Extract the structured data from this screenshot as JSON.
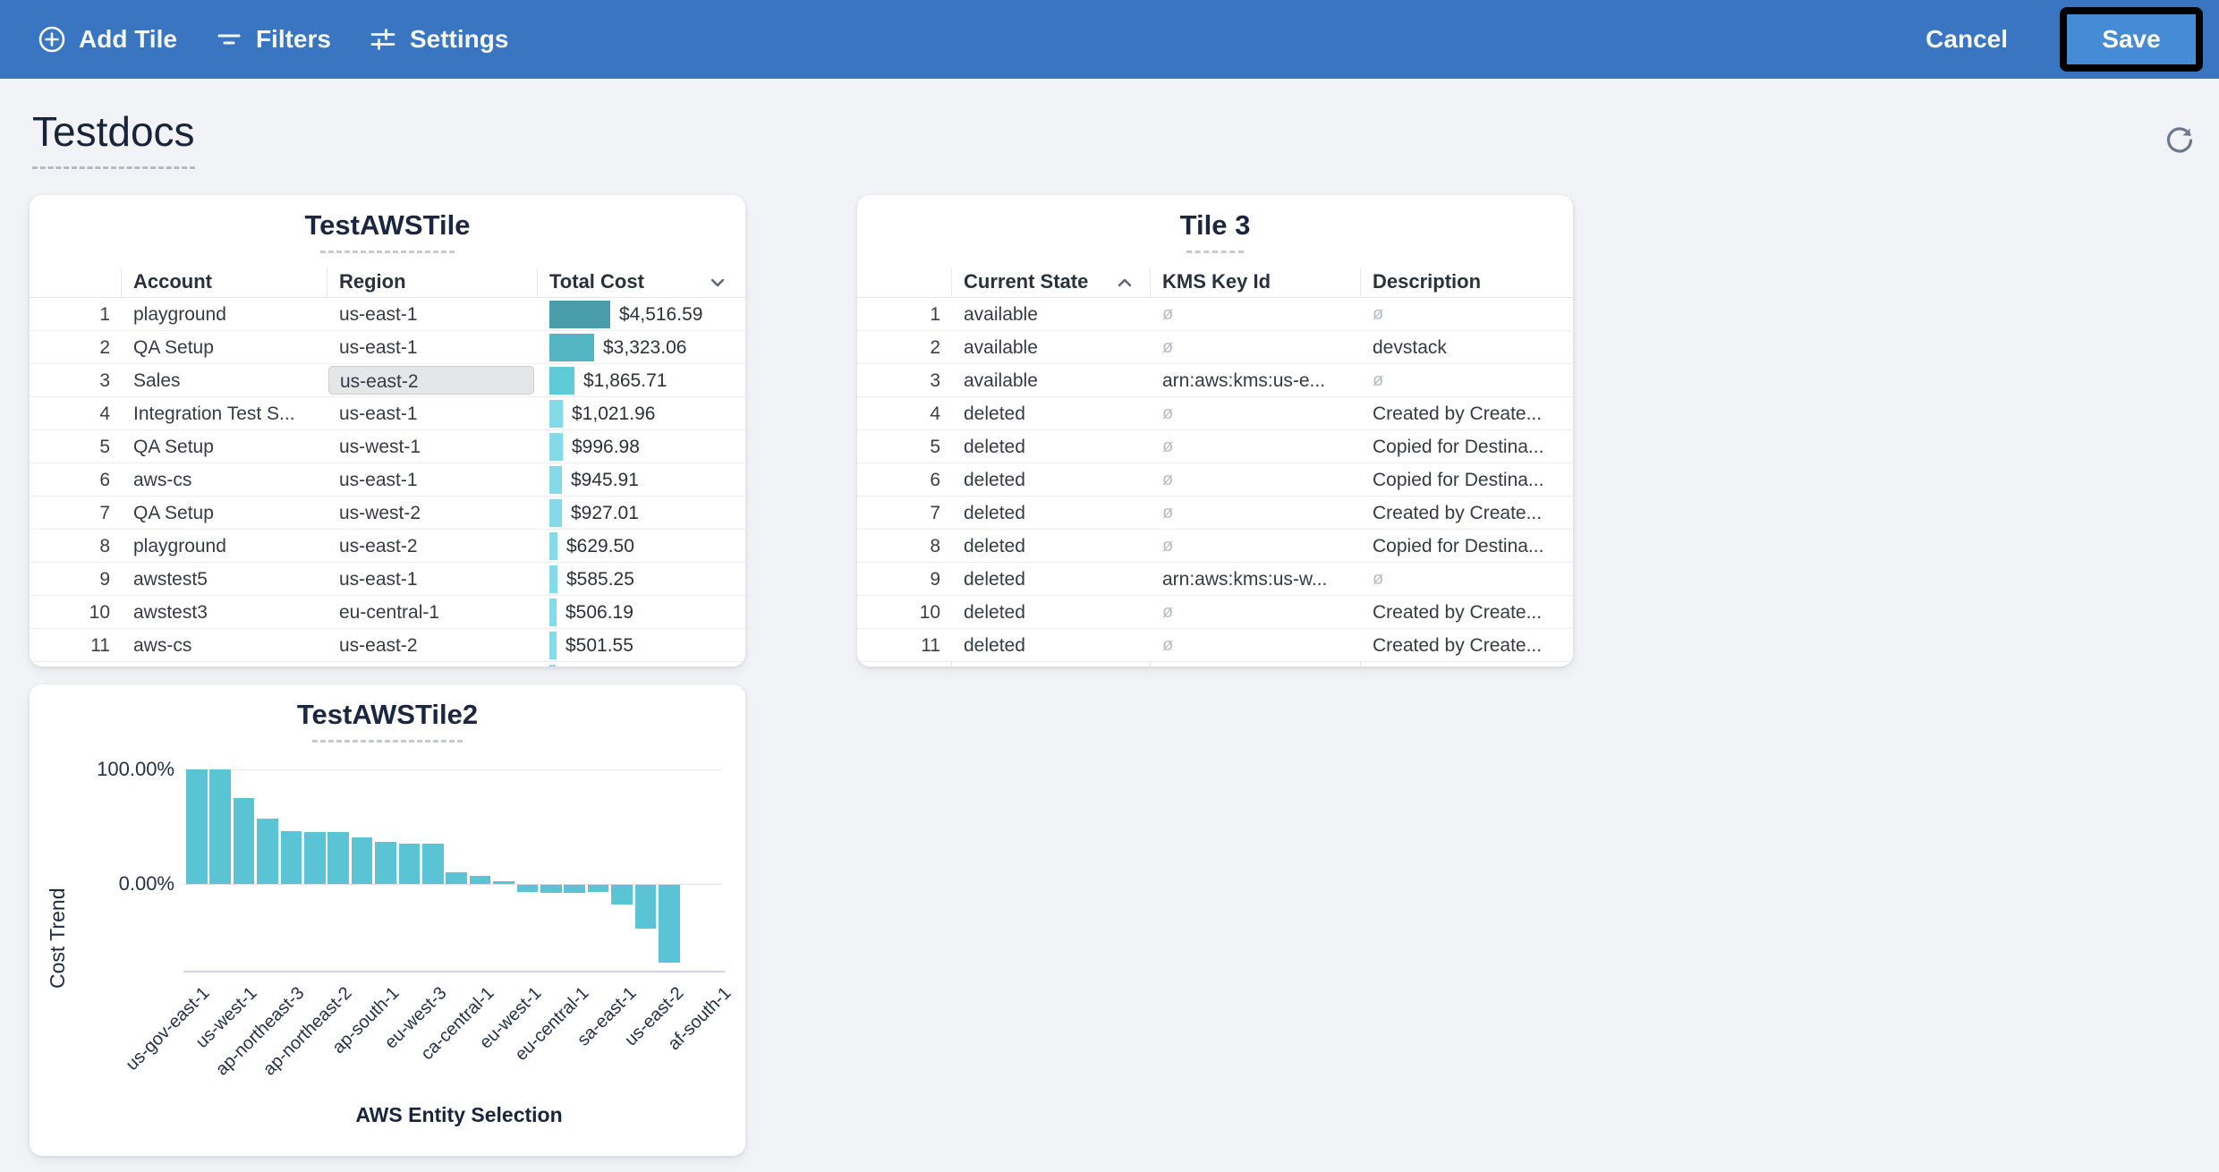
{
  "toolbar": {
    "bg_color": "#3a75c1",
    "add_tile_label": "Add Tile",
    "filters_label": "Filters",
    "settings_label": "Settings",
    "cancel_label": "Cancel",
    "save_label": "Save",
    "save_button_color": "#468bd5",
    "save_focus_ring_color": "#000000"
  },
  "page": {
    "title": "Testdocs"
  },
  "tile1": {
    "title": "TestAWSTile",
    "columns": [
      "Account",
      "Region",
      "Total Cost"
    ],
    "sort": {
      "column": "Total Cost",
      "direction": "desc"
    },
    "max_value": 4516.59,
    "rows": [
      {
        "n": "1",
        "account": "playground",
        "region": "us-east-1",
        "cost": "$4,516.59",
        "value": 4516.59,
        "bar_color": "#4a9daa"
      },
      {
        "n": "2",
        "account": "QA Setup",
        "region": "us-east-1",
        "cost": "$3,323.06",
        "value": 3323.06,
        "bar_color": "#55b6c3"
      },
      {
        "n": "3",
        "account": "Sales",
        "region": "us-east-2",
        "cost": "$1,865.71",
        "value": 1865.71,
        "bar_color": "#5ecbd8",
        "region_selected": true
      },
      {
        "n": "4",
        "account": "Integration Test S...",
        "region": "us-east-1",
        "cost": "$1,021.96",
        "value": 1021.96,
        "bar_color": "#84dbe7"
      },
      {
        "n": "5",
        "account": "QA Setup",
        "region": "us-west-1",
        "cost": "$996.98",
        "value": 996.98,
        "bar_color": "#84dbe7"
      },
      {
        "n": "6",
        "account": "aws-cs",
        "region": "us-east-1",
        "cost": "$945.91",
        "value": 945.91,
        "bar_color": "#84dbe7"
      },
      {
        "n": "7",
        "account": "QA Setup",
        "region": "us-west-2",
        "cost": "$927.01",
        "value": 927.01,
        "bar_color": "#84dbe7"
      },
      {
        "n": "8",
        "account": "playground",
        "region": "us-east-2",
        "cost": "$629.50",
        "value": 629.5,
        "bar_color": "#84dbe7"
      },
      {
        "n": "9",
        "account": "awstest5",
        "region": "us-east-1",
        "cost": "$585.25",
        "value": 585.25,
        "bar_color": "#84dbe7"
      },
      {
        "n": "10",
        "account": "awstest3",
        "region": "eu-central-1",
        "cost": "$506.19",
        "value": 506.19,
        "bar_color": "#84dbe7"
      },
      {
        "n": "11",
        "account": "aws-cs",
        "region": "us-east-2",
        "cost": "$501.55",
        "value": 501.55,
        "bar_color": "#84dbe7"
      },
      {
        "n": "",
        "account": "",
        "region": "",
        "cost": "",
        "value": 490,
        "bar_color": "#84dbe7",
        "partial": true
      }
    ]
  },
  "tile3": {
    "title": "Tile 3",
    "columns": [
      "Current State",
      "KMS Key Id",
      "Description"
    ],
    "sort": {
      "column": "Current State",
      "direction": "asc"
    },
    "null_symbol": "ø",
    "rows": [
      {
        "n": "1",
        "state": "available",
        "kms": null,
        "desc": null
      },
      {
        "n": "2",
        "state": "available",
        "kms": null,
        "desc": "devstack"
      },
      {
        "n": "3",
        "state": "available",
        "kms": "arn:aws:kms:us-e...",
        "desc": null
      },
      {
        "n": "4",
        "state": "deleted",
        "kms": null,
        "desc": "Created by Create..."
      },
      {
        "n": "5",
        "state": "deleted",
        "kms": null,
        "desc": "Copied for Destina..."
      },
      {
        "n": "6",
        "state": "deleted",
        "kms": null,
        "desc": "Copied for Destina..."
      },
      {
        "n": "7",
        "state": "deleted",
        "kms": null,
        "desc": "Created by Create..."
      },
      {
        "n": "8",
        "state": "deleted",
        "kms": null,
        "desc": "Copied for Destina..."
      },
      {
        "n": "9",
        "state": "deleted",
        "kms": "arn:aws:kms:us-w...",
        "desc": null
      },
      {
        "n": "10",
        "state": "deleted",
        "kms": null,
        "desc": "Created by Create..."
      },
      {
        "n": "11",
        "state": "deleted",
        "kms": null,
        "desc": "Created by Create..."
      }
    ]
  },
  "chart_data": {
    "type": "bar",
    "title": "TestAWSTile2",
    "xlabel": "AWS Entity Selection",
    "ylabel": "Cost Trend",
    "bar_color": "#5bc4d4",
    "ylim": [
      -75,
      105
    ],
    "gridlines": [
      100,
      0
    ],
    "y_tick_values": [
      100,
      0
    ],
    "y_tick_labels": [
      "100.00%",
      "0.00%"
    ],
    "x_tick_labels": [
      "us-gov-east-1",
      "us-west-1",
      "ap-northeast-3",
      "ap-northeast-2",
      "ap-south-1",
      "eu-west-3",
      "ca-central-1",
      "eu-west-1",
      "eu-central-1",
      "sa-east-1",
      "us-east-2",
      "af-south-1"
    ],
    "values": [
      100,
      100,
      75,
      57,
      46,
      45,
      45,
      41,
      37,
      35,
      35,
      10,
      7,
      2,
      -6,
      -7,
      -7,
      -6,
      -17,
      -38,
      -68
    ]
  },
  "icons": {
    "refresh_color": "#6b7890"
  }
}
